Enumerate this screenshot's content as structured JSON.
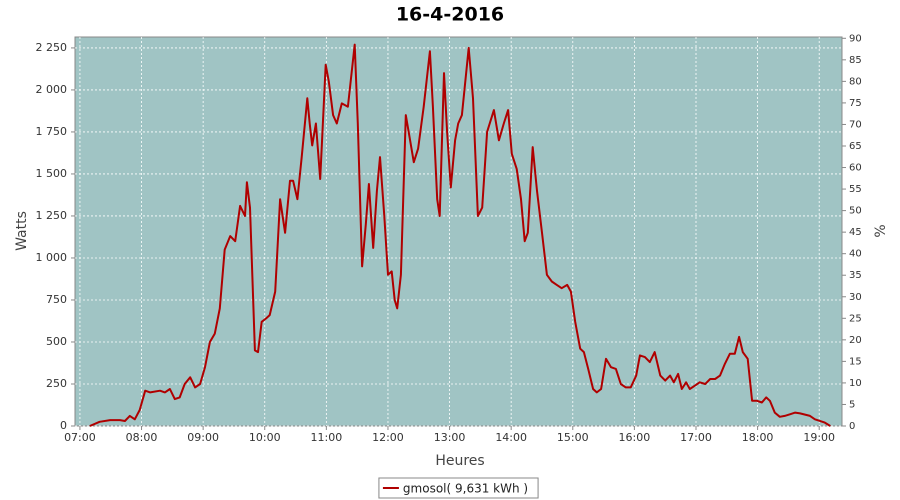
{
  "chart_data": {
    "type": "line",
    "title": "16-4-2016",
    "x_label": "Heures",
    "y_label": "Watts",
    "y2_label": "%",
    "grid": true,
    "legend_position": "bottom",
    "background": "#a0c4c4",
    "xlim": [
      6.92,
      19.37
    ],
    "xticks": [
      {
        "value": 7,
        "label": "07:00"
      },
      {
        "value": 8,
        "label": "08:00"
      },
      {
        "value": 9,
        "label": "09:00"
      },
      {
        "value": 10,
        "label": "10:00"
      },
      {
        "value": 11,
        "label": "11:00"
      },
      {
        "value": 12,
        "label": "12:00"
      },
      {
        "value": 13,
        "label": "13:00"
      },
      {
        "value": 14,
        "label": "14:00"
      },
      {
        "value": 15,
        "label": "15:00"
      },
      {
        "value": 16,
        "label": "16:00"
      },
      {
        "value": 17,
        "label": "17:00"
      },
      {
        "value": 18,
        "label": "18:00"
      },
      {
        "value": 19,
        "label": "19:00"
      }
    ],
    "ylim": [
      0,
      2315
    ],
    "yticks": [
      0,
      250,
      500,
      750,
      {
        "value": 1000,
        "label": "1 000"
      },
      {
        "value": 1250,
        "label": "1 250"
      },
      {
        "value": 1500,
        "label": "1 500"
      },
      {
        "value": 1750,
        "label": "1 750"
      },
      {
        "value": 2000,
        "label": "2 000"
      },
      {
        "value": 2250,
        "label": "2 250"
      }
    ],
    "y2lim": [
      0,
      90.3
    ],
    "y2ticks": [
      0,
      5,
      10,
      15,
      20,
      25,
      30,
      35,
      40,
      45,
      50,
      55,
      60,
      65,
      70,
      75,
      80,
      85,
      90
    ],
    "x": [
      7.16,
      7.32,
      7.49,
      7.65,
      7.73,
      7.81,
      7.89,
      7.97,
      8.06,
      8.14,
      8.3,
      8.38,
      8.46,
      8.54,
      8.62,
      8.7,
      8.79,
      8.87,
      8.95,
      9.03,
      9.11,
      9.19,
      9.27,
      9.35,
      9.44,
      9.52,
      9.6,
      9.68,
      9.71,
      9.76,
      9.84,
      9.89,
      9.95,
      10.02,
      10.08,
      10.17,
      10.25,
      10.33,
      10.41,
      10.46,
      10.53,
      10.6,
      10.69,
      10.73,
      10.77,
      10.83,
      10.9,
      10.99,
      11.04,
      11.11,
      11.17,
      11.25,
      11.35,
      11.46,
      11.51,
      11.58,
      11.64,
      11.69,
      11.76,
      11.82,
      11.87,
      11.94,
      12.0,
      12.06,
      12.11,
      12.15,
      12.21,
      12.29,
      12.36,
      12.42,
      12.49,
      12.58,
      12.68,
      12.73,
      12.8,
      12.84,
      12.91,
      12.96,
      13.02,
      13.09,
      13.14,
      13.2,
      13.31,
      13.38,
      13.46,
      13.53,
      13.61,
      13.72,
      13.8,
      13.88,
      13.95,
      14.01,
      14.09,
      14.16,
      14.22,
      14.27,
      14.35,
      14.42,
      14.5,
      14.58,
      14.66,
      14.74,
      14.82,
      14.91,
      14.97,
      15.04,
      15.12,
      15.18,
      15.25,
      15.33,
      15.39,
      15.46,
      15.54,
      15.62,
      15.7,
      15.78,
      15.86,
      15.94,
      16.03,
      16.09,
      16.17,
      16.25,
      16.33,
      16.42,
      16.5,
      16.58,
      16.64,
      16.71,
      16.77,
      16.84,
      16.9,
      16.98,
      17.06,
      17.15,
      17.23,
      17.31,
      17.39,
      17.47,
      17.55,
      17.63,
      17.7,
      17.76,
      17.84,
      17.91,
      17.99,
      18.07,
      18.14,
      18.2,
      18.28,
      18.36,
      18.44,
      18.53,
      18.61,
      18.69,
      18.85,
      18.93,
      19.09,
      19.18
    ],
    "series": [
      {
        "name": "gmosol( 9,631 kWh )",
        "color": "#b00000",
        "values": [
          0,
          25,
          35,
          35,
          30,
          60,
          40,
          95,
          210,
          200,
          210,
          200,
          220,
          160,
          170,
          250,
          290,
          230,
          250,
          350,
          500,
          550,
          700,
          1050,
          1130,
          1100,
          1310,
          1250,
          1450,
          1300,
          450,
          440,
          620,
          640,
          660,
          800,
          1350,
          1150,
          1460,
          1460,
          1350,
          1600,
          1950,
          1800,
          1670,
          1800,
          1470,
          2150,
          2050,
          1850,
          1800,
          1920,
          1900,
          2270,
          1800,
          950,
          1200,
          1440,
          1060,
          1400,
          1600,
          1250,
          900,
          920,
          750,
          700,
          900,
          1850,
          1700,
          1570,
          1650,
          1900,
          2230,
          1900,
          1350,
          1250,
          2100,
          1750,
          1420,
          1700,
          1800,
          1850,
          2250,
          1950,
          1250,
          1300,
          1750,
          1880,
          1700,
          1800,
          1880,
          1620,
          1530,
          1350,
          1100,
          1150,
          1660,
          1400,
          1150,
          900,
          860,
          840,
          820,
          840,
          800,
          620,
          460,
          440,
          340,
          220,
          200,
          220,
          400,
          350,
          340,
          250,
          230,
          230,
          300,
          420,
          410,
          380,
          440,
          300,
          270,
          300,
          260,
          310,
          220,
          260,
          220,
          240,
          260,
          250,
          280,
          280,
          300,
          370,
          430,
          430,
          530,
          440,
          400,
          150,
          150,
          140,
          170,
          150,
          80,
          55,
          60,
          70,
          80,
          75,
          60,
          40,
          20,
          0
        ]
      }
    ]
  }
}
